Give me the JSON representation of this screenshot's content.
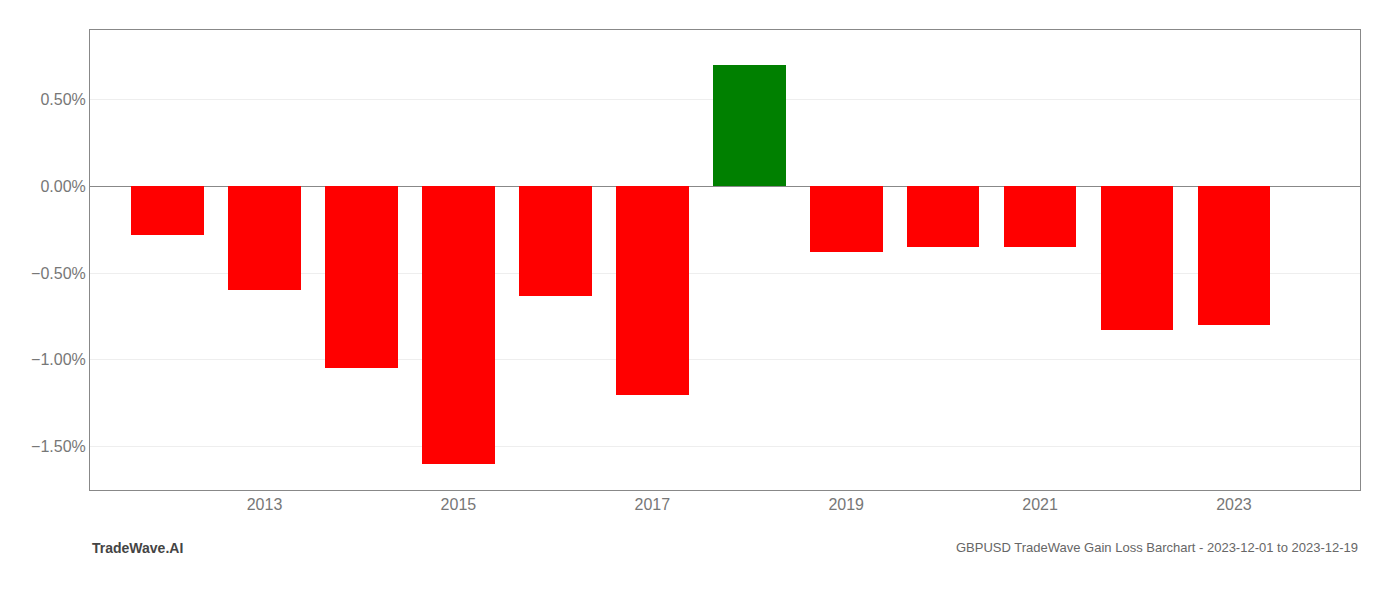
{
  "chart_data": {
    "type": "bar",
    "title": "GBPUSD TradeWave Gain Loss Barchart - 2023-12-01 to 2023-12-19",
    "annotations": [
      {
        "text": "TradeWave.AI"
      }
    ],
    "x": [
      2012,
      2013,
      2014,
      2015,
      2016,
      2017,
      2018,
      2019,
      2020,
      2021,
      2022,
      2023
    ],
    "values": [
      -0.28,
      -0.6,
      -1.05,
      -1.6,
      -0.63,
      -1.2,
      0.7,
      -0.38,
      -0.35,
      -0.35,
      -0.83,
      -0.8
    ],
    "colors": [
      "#ff0000",
      "#ff0000",
      "#ff0000",
      "#ff0000",
      "#ff0000",
      "#ff0000",
      "#008000",
      "#ff0000",
      "#ff0000",
      "#ff0000",
      "#ff0000",
      "#ff0000"
    ],
    "xlim": [
      2011.2,
      2024.3
    ],
    "xticks": [
      2013,
      2015,
      2017,
      2019,
      2021,
      2023
    ],
    "ylim": [
      -1.75,
      0.9
    ],
    "yticks": [
      {
        "value": 0.5,
        "label": "0.50%"
      },
      {
        "value": 0.0,
        "label": "0.00%"
      },
      {
        "value": -0.5,
        "label": "−0.50%"
      },
      {
        "value": -1.0,
        "label": "−1.00%"
      },
      {
        "value": -1.5,
        "label": "−1.50%"
      }
    ],
    "grid": true
  }
}
